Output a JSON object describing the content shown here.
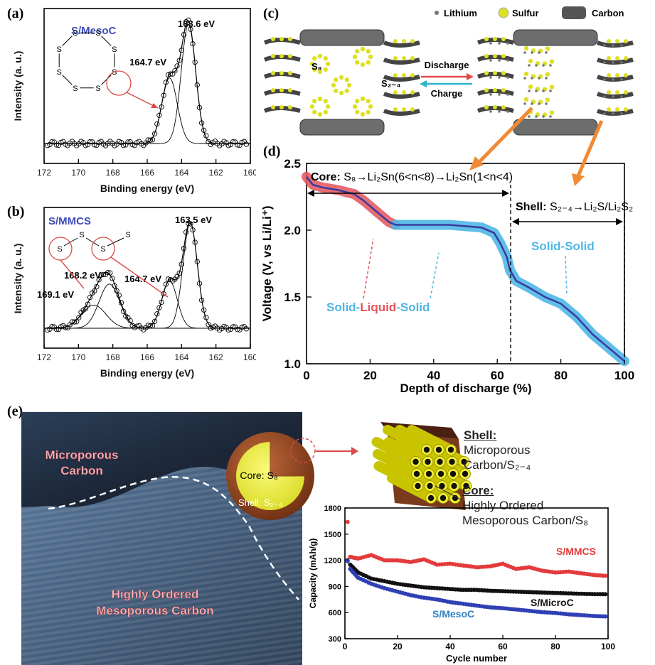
{
  "panel_labels": {
    "a": "(a)",
    "b": "(b)",
    "c": "(c)",
    "d": "(d)",
    "e": "(e)"
  },
  "chart_data": [
    {
      "id": "a",
      "type": "line",
      "title": "S/MesoC",
      "xlabel": "Binding energy (eV)",
      "ylabel": "Intensity (a. u.)",
      "xlim": [
        172,
        160
      ],
      "x_ticks": [
        "172",
        "170",
        "168",
        "166",
        "164",
        "162",
        "160"
      ],
      "peaks": [
        {
          "label": "164.7 eV",
          "center": 164.7,
          "height": 0.55,
          "width": 0.45
        },
        {
          "label": "163.6 eV",
          "center": 163.6,
          "height": 1.0,
          "width": 0.42
        }
      ],
      "molecule_atom": "S"
    },
    {
      "id": "b",
      "type": "line",
      "title": "S/MMCS",
      "xlabel": "Binding energy (eV)",
      "ylabel": "Intensity (a. u.)",
      "xlim": [
        172,
        160
      ],
      "x_ticks": [
        "172",
        "170",
        "168",
        "166",
        "164",
        "162",
        "160"
      ],
      "peaks": [
        {
          "label": "169.1 eV",
          "center": 169.1,
          "height": 0.22,
          "width": 0.7
        },
        {
          "label": "168.2 eV",
          "center": 168.2,
          "height": 0.42,
          "width": 0.6
        },
        {
          "label": "164.7 eV",
          "center": 164.7,
          "height": 0.45,
          "width": 0.45
        },
        {
          "label": "163.5 eV",
          "center": 163.5,
          "height": 1.0,
          "width": 0.42
        }
      ],
      "molecule_atom": "S"
    },
    {
      "id": "d",
      "type": "line",
      "xlabel": "Depth of discharge (%)",
      "ylabel": "Voltage (V, vs Li/Li⁺)",
      "xlim": [
        0,
        100
      ],
      "ylim": [
        1.0,
        2.5
      ],
      "x_ticks": [
        "0",
        "20",
        "40",
        "60",
        "80",
        "100"
      ],
      "y_ticks": [
        "1.0",
        "1.5",
        "2.0",
        "2.5"
      ],
      "series": [
        {
          "x": [
            0,
            2,
            5,
            10,
            15,
            18,
            22,
            26,
            28,
            35,
            45,
            55,
            59,
            61,
            63,
            64,
            66,
            70,
            75,
            80,
            85,
            90,
            95,
            100
          ],
          "y": [
            2.4,
            2.34,
            2.32,
            2.3,
            2.27,
            2.22,
            2.14,
            2.06,
            2.04,
            2.04,
            2.04,
            2.02,
            1.98,
            1.9,
            1.8,
            1.7,
            1.62,
            1.57,
            1.5,
            1.45,
            1.35,
            1.22,
            1.12,
            1.02
          ]
        }
      ],
      "core_label": "Core:",
      "core_reaction": "S₈→Li₂Sn(6<n<8)→Li₂Sn(1<n<4)",
      "shell_label": "Shell:",
      "shell_reaction": "S₂₋₄→Li₂S/Li₂S₂",
      "sls_parts": [
        "Solid-",
        "Liquid",
        "-Solid"
      ],
      "ss_label": "Solid-Solid",
      "colors": {
        "liquid": "#e2545c",
        "solid": "#4fb7e6",
        "line": "#3a3a9c"
      }
    },
    {
      "id": "e",
      "type": "scatter",
      "xlabel": "Cycle number",
      "ylabel": "Capacity (mAh/g)",
      "xlim": [
        0,
        100
      ],
      "ylim": [
        300,
        1800
      ],
      "x_ticks": [
        "0",
        "20",
        "40",
        "60",
        "80",
        "100"
      ],
      "y_ticks": [
        "300",
        "600",
        "900",
        "1200",
        "1500",
        "1800"
      ],
      "series": [
        {
          "name": "S/MMCS",
          "color": "#e33b3b",
          "first": 1640,
          "x": [
            2,
            5,
            10,
            15,
            20,
            25,
            30,
            35,
            40,
            45,
            50,
            55,
            60,
            65,
            70,
            75,
            80,
            85,
            90,
            95,
            100
          ],
          "y": [
            1240,
            1220,
            1260,
            1200,
            1200,
            1180,
            1210,
            1150,
            1160,
            1140,
            1120,
            1130,
            1160,
            1100,
            1120,
            1080,
            1060,
            1070,
            1050,
            1030,
            1020
          ]
        },
        {
          "name": "S/MicroC",
          "color": "#111111",
          "first": 1200,
          "x": [
            2,
            5,
            10,
            15,
            20,
            25,
            30,
            35,
            40,
            45,
            50,
            55,
            60,
            65,
            70,
            75,
            80,
            85,
            90,
            95,
            100
          ],
          "y": [
            1150,
            1060,
            990,
            960,
            930,
            910,
            890,
            880,
            870,
            860,
            860,
            850,
            845,
            840,
            835,
            830,
            825,
            820,
            815,
            812,
            810
          ]
        },
        {
          "name": "S/MesoC",
          "color": "#2f3fb4",
          "first": 1190,
          "x": [
            2,
            5,
            10,
            15,
            20,
            25,
            30,
            35,
            40,
            45,
            50,
            55,
            60,
            65,
            70,
            75,
            80,
            85,
            90,
            95,
            100
          ],
          "y": [
            1100,
            1000,
            930,
            880,
            840,
            800,
            770,
            750,
            720,
            700,
            680,
            660,
            650,
            635,
            620,
            605,
            595,
            580,
            570,
            560,
            555
          ]
        }
      ]
    }
  ],
  "schematic_c": {
    "legend": [
      "Lithium",
      "Sulfur",
      "Carbon"
    ],
    "s8_label": "S₈",
    "s24_label": "S₂₋₄",
    "discharge": "Discharge",
    "charge": "Charge",
    "colors": {
      "sulfur": "#dde024",
      "lithium": "#777777",
      "carbon": "#555555",
      "discharge_arrow": "#e24a4a",
      "charge_arrow": "#2ab4c8"
    }
  },
  "panel_e": {
    "micro_label_1": "Microporous",
    "micro_label_2": "Carbon",
    "meso_label_1": "Highly Ordered",
    "meso_label_2": "Mesoporous Carbon",
    "core_s8": "Core: S₈",
    "shell_s24": "Shell: S₂₋₄",
    "shell_title": "Shell:",
    "shell_desc_1": "Microporous",
    "shell_desc_2": "Carbon/S₂₋₄",
    "core_title": "Core:",
    "core_desc_1": "Highly Ordered",
    "core_desc_2": "Mesoporous Carbon/S₈"
  }
}
